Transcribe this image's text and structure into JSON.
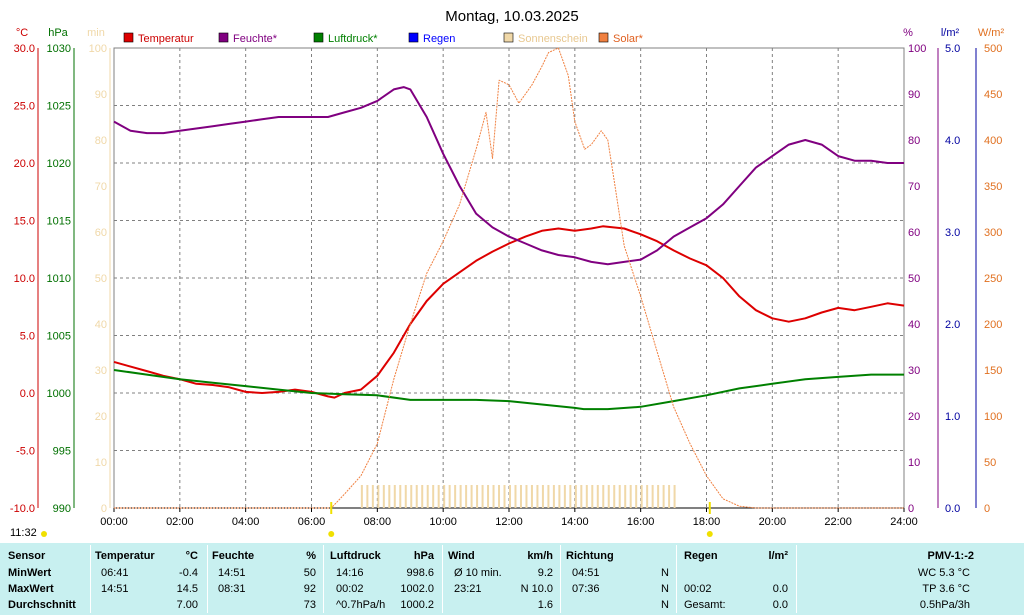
{
  "title": "Montag, 10.03.2025",
  "time_label": "11:32",
  "axes": {
    "temp": {
      "unit": "°C",
      "ticks": [
        "30.0",
        "25.0",
        "20.0",
        "15.0",
        "10.0",
        "5.0",
        "0.0",
        "-5.0",
        "-10.0"
      ],
      "color": "#cc0000"
    },
    "pressure": {
      "unit": "hPa",
      "ticks": [
        "1030",
        "1025",
        "1020",
        "1015",
        "1010",
        "1005",
        "1000",
        "995",
        "990"
      ],
      "color": "#007000"
    },
    "sun": {
      "unit": "min",
      "ticks": [
        "100",
        "90",
        "80",
        "70",
        "60",
        "50",
        "40",
        "30",
        "20",
        "10",
        "0"
      ],
      "color": "#f0d8a8"
    },
    "humidity": {
      "unit": "%",
      "ticks": [
        "100",
        "90",
        "80",
        "70",
        "60",
        "50",
        "40",
        "30",
        "20",
        "10",
        "0"
      ],
      "color": "#800080"
    },
    "rain": {
      "unit": "l/m²",
      "ticks": [
        "5.0",
        "4.0",
        "3.0",
        "2.0",
        "1.0",
        "0.0"
      ],
      "color": "#0000a0"
    },
    "solar": {
      "unit": "W/m²",
      "ticks": [
        "500",
        "450",
        "400",
        "350",
        "300",
        "250",
        "200",
        "150",
        "100",
        "50",
        "0"
      ],
      "color": "#e07020"
    }
  },
  "x_ticks": [
    "00:00",
    "02:00",
    "04:00",
    "06:00",
    "08:00",
    "10:00",
    "12:00",
    "14:00",
    "16:00",
    "18:00",
    "20:00",
    "22:00",
    "24:00"
  ],
  "legend": [
    {
      "label": "Temperatur",
      "color": "#dd0000"
    },
    {
      "label": "Feuchte*",
      "color": "#800080"
    },
    {
      "label": "Luftdruck*",
      "color": "#008000"
    },
    {
      "label": "Regen",
      "color": "#0000ff"
    },
    {
      "label": "Sonnenschein",
      "color": "#f0d8a8"
    },
    {
      "label": "Solar*",
      "color": "#f08040"
    }
  ],
  "chart_data": {
    "type": "line",
    "x_unit": "hours",
    "xlim": [
      0,
      24
    ],
    "series": [
      {
        "name": "Temperatur",
        "axis": "temp",
        "color": "#dd0000",
        "points": [
          [
            0,
            2.7
          ],
          [
            0.5,
            2.3
          ],
          [
            1,
            1.9
          ],
          [
            1.5,
            1.5
          ],
          [
            2,
            1.2
          ],
          [
            2.5,
            0.8
          ],
          [
            3,
            0.7
          ],
          [
            3.5,
            0.5
          ],
          [
            4,
            0.1
          ],
          [
            4.5,
            0.0
          ],
          [
            5,
            0.1
          ],
          [
            5.5,
            0.3
          ],
          [
            6,
            0.1
          ],
          [
            6.5,
            -0.3
          ],
          [
            6.7,
            -0.4
          ],
          [
            7,
            0.0
          ],
          [
            7.5,
            0.3
          ],
          [
            8,
            1.5
          ],
          [
            8.5,
            3.5
          ],
          [
            9,
            6.0
          ],
          [
            9.5,
            8.0
          ],
          [
            10,
            9.5
          ],
          [
            10.5,
            10.5
          ],
          [
            11,
            11.5
          ],
          [
            11.5,
            12.3
          ],
          [
            12,
            13.0
          ],
          [
            12.5,
            13.6
          ],
          [
            13,
            14.1
          ],
          [
            13.5,
            14.3
          ],
          [
            14,
            14.1
          ],
          [
            14.5,
            14.3
          ],
          [
            14.85,
            14.5
          ],
          [
            15.5,
            14.3
          ],
          [
            16,
            13.8
          ],
          [
            16.5,
            13.2
          ],
          [
            17,
            12.4
          ],
          [
            17.5,
            11.7
          ],
          [
            18,
            11.1
          ],
          [
            18.5,
            10.0
          ],
          [
            19,
            8.4
          ],
          [
            19.5,
            7.2
          ],
          [
            20,
            6.5
          ],
          [
            20.5,
            6.2
          ],
          [
            21,
            6.5
          ],
          [
            21.5,
            7.0
          ],
          [
            22,
            7.4
          ],
          [
            22.5,
            7.2
          ],
          [
            23,
            7.5
          ],
          [
            23.5,
            7.8
          ],
          [
            24,
            7.6
          ]
        ]
      },
      {
        "name": "Feuchte*",
        "axis": "humidity",
        "color": "#800080",
        "points": [
          [
            0,
            84
          ],
          [
            0.5,
            82
          ],
          [
            1,
            81.5
          ],
          [
            1.5,
            81.5
          ],
          [
            2,
            82
          ],
          [
            2.5,
            82.5
          ],
          [
            3,
            83
          ],
          [
            3.5,
            83.5
          ],
          [
            4,
            84
          ],
          [
            4.5,
            84.5
          ],
          [
            5,
            85
          ],
          [
            5.5,
            85
          ],
          [
            6,
            85
          ],
          [
            6.5,
            85
          ],
          [
            7,
            86
          ],
          [
            7.5,
            87
          ],
          [
            8,
            88.5
          ],
          [
            8.5,
            91
          ],
          [
            8.8,
            91.5
          ],
          [
            9,
            91
          ],
          [
            9.5,
            85
          ],
          [
            10,
            77
          ],
          [
            10.5,
            70
          ],
          [
            11,
            64
          ],
          [
            11.5,
            61
          ],
          [
            12,
            59
          ],
          [
            12.5,
            57.5
          ],
          [
            13,
            56
          ],
          [
            13.5,
            55
          ],
          [
            14,
            54.5
          ],
          [
            14.5,
            53.5
          ],
          [
            15,
            53
          ],
          [
            15.5,
            53.5
          ],
          [
            16,
            54
          ],
          [
            16.5,
            56
          ],
          [
            17,
            59
          ],
          [
            17.5,
            61
          ],
          [
            18,
            63
          ],
          [
            18.5,
            66
          ],
          [
            19,
            70
          ],
          [
            19.5,
            74
          ],
          [
            20,
            76.5
          ],
          [
            20.5,
            79
          ],
          [
            21,
            80
          ],
          [
            21.5,
            79
          ],
          [
            22,
            76.5
          ],
          [
            22.5,
            75.5
          ],
          [
            23,
            75.5
          ],
          [
            23.5,
            75
          ],
          [
            24,
            75
          ]
        ]
      },
      {
        "name": "Luftdruck*",
        "axis": "pressure",
        "color": "#008000",
        "points": [
          [
            0,
            1002.0
          ],
          [
            1,
            1001.6
          ],
          [
            2,
            1001.2
          ],
          [
            3,
            1000.9
          ],
          [
            4,
            1000.6
          ],
          [
            5,
            1000.3
          ],
          [
            6,
            1000.0
          ],
          [
            7,
            999.9
          ],
          [
            8,
            999.8
          ],
          [
            9,
            999.4
          ],
          [
            10,
            999.4
          ],
          [
            11,
            999.4
          ],
          [
            12,
            999.3
          ],
          [
            13,
            999.0
          ],
          [
            14,
            998.7
          ],
          [
            14.27,
            998.6
          ],
          [
            15,
            998.6
          ],
          [
            16,
            998.8
          ],
          [
            17,
            999.3
          ],
          [
            18,
            999.8
          ],
          [
            19,
            1000.4
          ],
          [
            20,
            1000.8
          ],
          [
            21,
            1001.2
          ],
          [
            22,
            1001.4
          ],
          [
            23,
            1001.6
          ],
          [
            24,
            1001.6
          ]
        ]
      },
      {
        "name": "Solar*",
        "axis": "solar",
        "color": "#f08040",
        "points": [
          [
            0,
            0
          ],
          [
            6.6,
            0
          ],
          [
            7,
            15
          ],
          [
            7.5,
            35
          ],
          [
            8,
            70
          ],
          [
            8.5,
            140
          ],
          [
            9,
            200
          ],
          [
            9.5,
            255
          ],
          [
            10,
            290
          ],
          [
            10.5,
            330
          ],
          [
            11,
            390
          ],
          [
            11.3,
            430
          ],
          [
            11.5,
            380
          ],
          [
            11.7,
            465
          ],
          [
            12,
            460
          ],
          [
            12.3,
            440
          ],
          [
            12.7,
            460
          ],
          [
            13,
            480
          ],
          [
            13.2,
            495
          ],
          [
            13.5,
            500
          ],
          [
            13.8,
            470
          ],
          [
            14,
            420
          ],
          [
            14.3,
            390
          ],
          [
            14.5,
            395
          ],
          [
            14.8,
            410
          ],
          [
            15,
            400
          ],
          [
            15.2,
            355
          ],
          [
            15.5,
            285
          ],
          [
            16,
            230
          ],
          [
            16.5,
            170
          ],
          [
            17,
            110
          ],
          [
            17.5,
            70
          ],
          [
            18,
            35
          ],
          [
            18.5,
            10
          ],
          [
            19,
            2
          ],
          [
            19.5,
            0
          ],
          [
            24,
            0
          ]
        ]
      }
    ],
    "sunshine_bars": {
      "name": "Sonnenschein",
      "axis": "sun",
      "start": 7.5,
      "end": 17.1,
      "value": 5
    },
    "markers": [
      {
        "name": "sunrise",
        "x": 6.6
      },
      {
        "name": "sunset",
        "x": 18.1
      }
    ]
  },
  "table": {
    "headers": {
      "sensor": "Sensor",
      "temp": "Temperatur",
      "temp_unit": "°C",
      "hum": "Feuchte",
      "hum_unit": "%",
      "press": "Luftdruck",
      "press_unit": "hPa",
      "wind": "Wind",
      "wind_unit": "km/h",
      "dir": "Richtung",
      "rain": "Regen",
      "rain_unit": "l/m²",
      "pmv": "PMV-1:-2"
    },
    "rows": [
      {
        "label": "MinWert",
        "temp_t": "06:41",
        "temp_v": "-0.4",
        "hum_t": "14:51",
        "hum_v": "50",
        "press_t": "14:16",
        "press_v": "998.6",
        "wind_t": "Ø 10 min.",
        "wind_v": "9.2",
        "dir_t": "04:51",
        "dir_v": "N",
        "rain_t": "",
        "rain_v": "",
        "pmv": "WC 5.3 °C"
      },
      {
        "label": "MaxWert",
        "temp_t": "14:51",
        "temp_v": "14.5",
        "hum_t": "08:31",
        "hum_v": "92",
        "press_t": "00:02",
        "press_v": "1002.0",
        "wind_t": "23:21",
        "wind_v": "N 10.0",
        "dir_t": "07:36",
        "dir_v": "N",
        "rain_t": "00:02",
        "rain_v": "0.0",
        "pmv": "TP 3.6 °C"
      },
      {
        "label": "Durchschnitt",
        "temp_t": "",
        "temp_v": "7.00",
        "hum_t": "",
        "hum_v": "73",
        "press_t": "^0.7hPa/h",
        "press_v": "1000.2",
        "wind_t": "",
        "wind_v": "1.6",
        "dir_t": "",
        "dir_v": "N",
        "rain_t": "Gesamt:",
        "rain_v": "0.0",
        "pmv": "0.5hPa/3h"
      }
    ]
  }
}
